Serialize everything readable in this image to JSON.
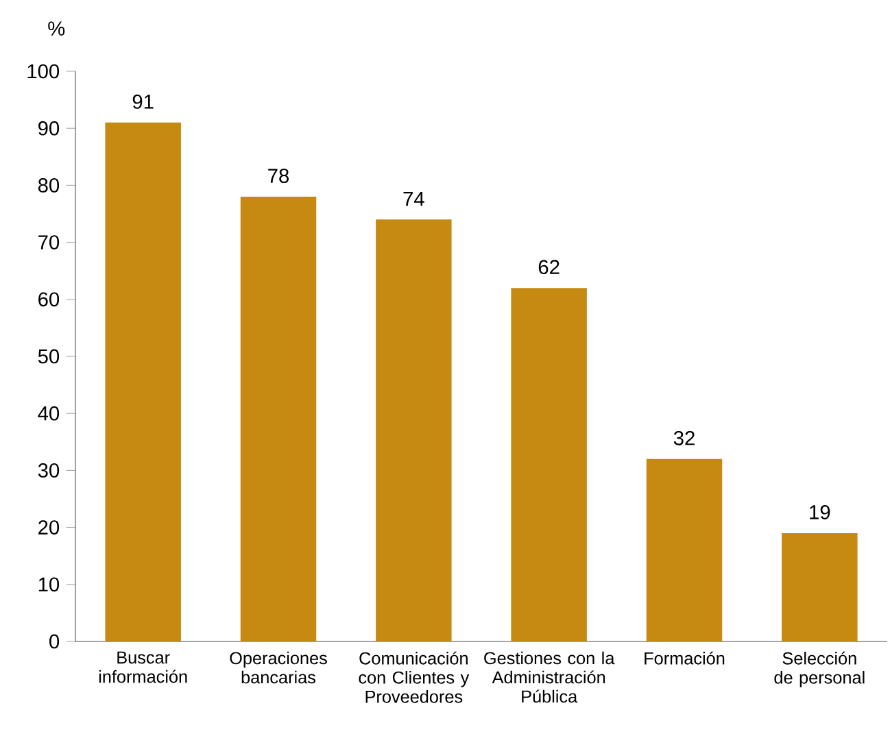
{
  "chart_data": {
    "type": "bar",
    "ylabel": "%",
    "categories": [
      "Buscar información",
      "Operaciones bancarias",
      "Comunicación con Clientes y Proveedores",
      "Gestiones con la Administración Pública",
      "Formación",
      "Selección de personal"
    ],
    "values": [
      91,
      78,
      74,
      62,
      32,
      19
    ],
    "color": "#c68a12",
    "ylim": [
      0,
      100
    ],
    "yticks": [
      0,
      10,
      20,
      30,
      40,
      50,
      60,
      70,
      80,
      90,
      100
    ],
    "data_labels": true
  }
}
